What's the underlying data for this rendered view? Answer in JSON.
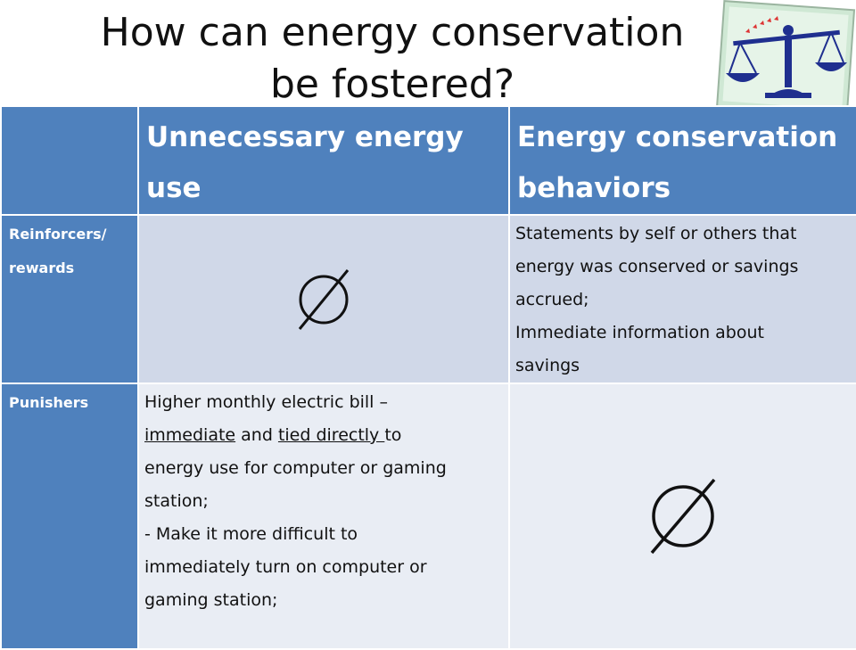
{
  "title": {
    "line1": "How can energy conservation",
    "line2": "be fostered?"
  },
  "logo_icon": "balance-scale-icon",
  "table": {
    "col_headers": [
      "",
      "Unnecessary energy use",
      "Energy conservation behaviors"
    ],
    "col_header_lines": {
      "col1": [
        "Unnecessary energy",
        "use"
      ],
      "col2": [
        "Energy conservation",
        "behaviors"
      ]
    },
    "rows": [
      {
        "label_lines": [
          "Reinforcers/",
          "rewards"
        ],
        "unnecessary_use": "empty-set-symbol",
        "conservation_behaviors_lines": [
          "Statements by self or others that",
          "energy was conserved or savings",
          "accrued;",
          "Immediate information about",
          "savings"
        ]
      },
      {
        "label": "Punishers",
        "unnecessary_use": {
          "line1": "Higher monthly electric bill –",
          "line2_underlined_a": "immediate",
          "line2_mid": " and ",
          "line2_underlined_b": "tied directly ",
          "line2_end": "to",
          "line3": "energy use for computer or gaming",
          "line4": "station;",
          "line5": "- Make it  more difficult to",
          "line6": "immediately turn on computer or",
          "line7": "gaming station;"
        },
        "conservation_behaviors": "empty-set-symbol"
      }
    ]
  },
  "colors": {
    "header_blue": "#4f81bd",
    "row1_bg": "#d0d8e8",
    "row2_bg": "#e9edf4",
    "scale_blue": "#1f2f8f",
    "logo_bg": "#cfe8d4"
  }
}
